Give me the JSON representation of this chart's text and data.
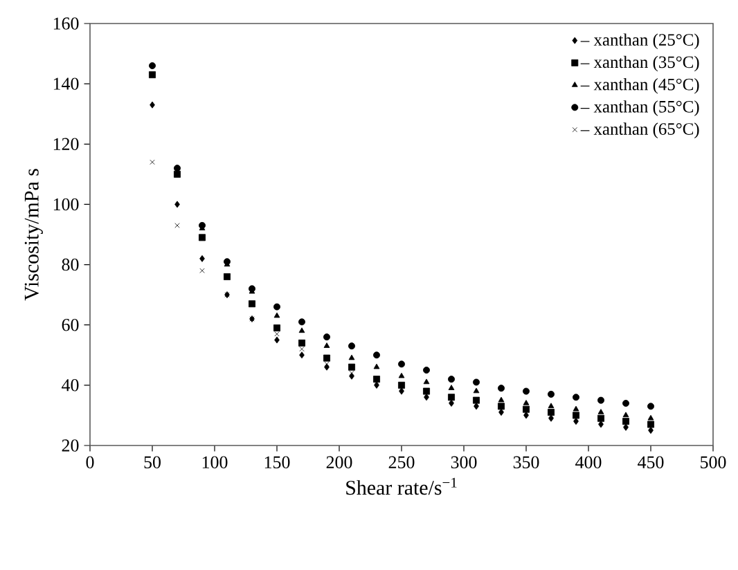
{
  "chart_data": {
    "type": "scatter",
    "xlabel": "Shear rate/s$^{−1}$",
    "ylabel": "Viscosity/mPa s",
    "x": [
      50,
      70,
      90,
      110,
      130,
      150,
      170,
      190,
      210,
      230,
      250,
      270,
      290,
      310,
      330,
      350,
      370,
      390,
      410,
      430,
      450
    ],
    "xlim": [
      0,
      500
    ],
    "xticks": [
      0,
      50,
      100,
      150,
      200,
      250,
      300,
      350,
      400,
      450,
      500
    ],
    "ylim": [
      20,
      160
    ],
    "yticks": [
      20,
      40,
      60,
      80,
      100,
      120,
      140,
      160
    ],
    "legend": "top right",
    "grid": false,
    "series": [
      {
        "name": "– xanthan (25°C)",
        "color": "#000000",
        "marker": "diamond",
        "values": [
          133,
          100,
          82,
          70,
          62,
          55,
          50,
          46,
          43,
          40,
          38,
          36,
          34,
          33,
          31,
          30,
          29,
          28,
          27,
          26,
          25
        ]
      },
      {
        "name": "– xanthan (35°C)",
        "color": "#000000",
        "marker": "square",
        "values": [
          143,
          110,
          89,
          76,
          67,
          59,
          54,
          49,
          46,
          42,
          40,
          38,
          36,
          35,
          33,
          32,
          31,
          30,
          29,
          28,
          27
        ]
      },
      {
        "name": "– xanthan (45°C)",
        "color": "#000000",
        "marker": "triangle",
        "values": [
          null,
          null,
          92,
          80,
          71,
          63,
          58,
          53,
          49,
          46,
          43,
          41,
          39,
          38,
          35,
          34,
          33,
          32,
          31,
          30,
          29
        ]
      },
      {
        "name": "– xanthan (55°C)",
        "color": "#000000",
        "marker": "circle",
        "values": [
          146,
          112,
          93,
          81,
          72,
          66,
          61,
          56,
          53,
          50,
          47,
          45,
          42,
          41,
          39,
          38,
          37,
          36,
          35,
          34,
          33
        ]
      },
      {
        "name": "– xanthan (65°C)",
        "color": "#000000",
        "marker": "cross",
        "values": [
          114,
          93,
          78,
          70,
          62,
          57,
          52,
          47,
          44,
          41,
          39,
          37,
          35,
          34,
          32,
          31,
          30,
          29,
          28,
          27,
          26
        ]
      }
    ]
  }
}
